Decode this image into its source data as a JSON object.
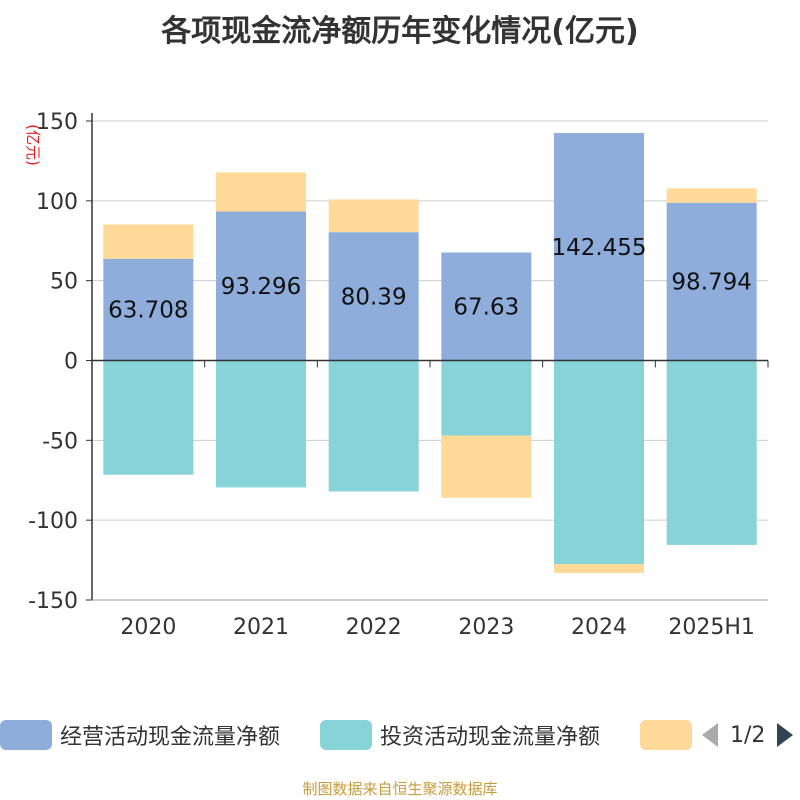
{
  "title": "各项现金流净额历年变化情况(亿元)",
  "source": "制图数据来自恒生聚源数据库",
  "legend": {
    "items": [
      {
        "label": "经营活动现金流量净额",
        "color": "#8eaddb"
      },
      {
        "label": "投资活动现金流量净额",
        "color": "#86d4d8"
      },
      {
        "label": "",
        "color": "#fed998"
      }
    ],
    "page": "1/2"
  },
  "chart_data": {
    "type": "bar",
    "stacked": true,
    "categories": [
      "2020",
      "2021",
      "2022",
      "2023",
      "2024",
      "2025H1"
    ],
    "ylabel": "(亿元)",
    "ylim": [
      -150,
      150
    ],
    "yticks": [
      -150,
      -100,
      -50,
      0,
      50,
      100,
      150
    ],
    "grid": true,
    "legend_position": "bottom",
    "series": [
      {
        "name": "经营活动现金流量净额",
        "color": "#8eaddb",
        "values": [
          63.708,
          93.296,
          80.39,
          67.63,
          142.455,
          98.794
        ],
        "labels": [
          "63.708",
          "93.296",
          "80.39",
          "67.63",
          "142.455",
          "98.794"
        ]
      },
      {
        "name": "投资活动现金流量净额",
        "color": "#86d4d8",
        "values": [
          -71.5,
          -79.5,
          -82.0,
          -47.0,
          -127.5,
          -115.5
        ]
      },
      {
        "name": "",
        "color": "#fed998",
        "values": [
          21.5,
          24.5,
          20.5,
          -39.0,
          -5.5,
          9.0
        ]
      }
    ]
  }
}
